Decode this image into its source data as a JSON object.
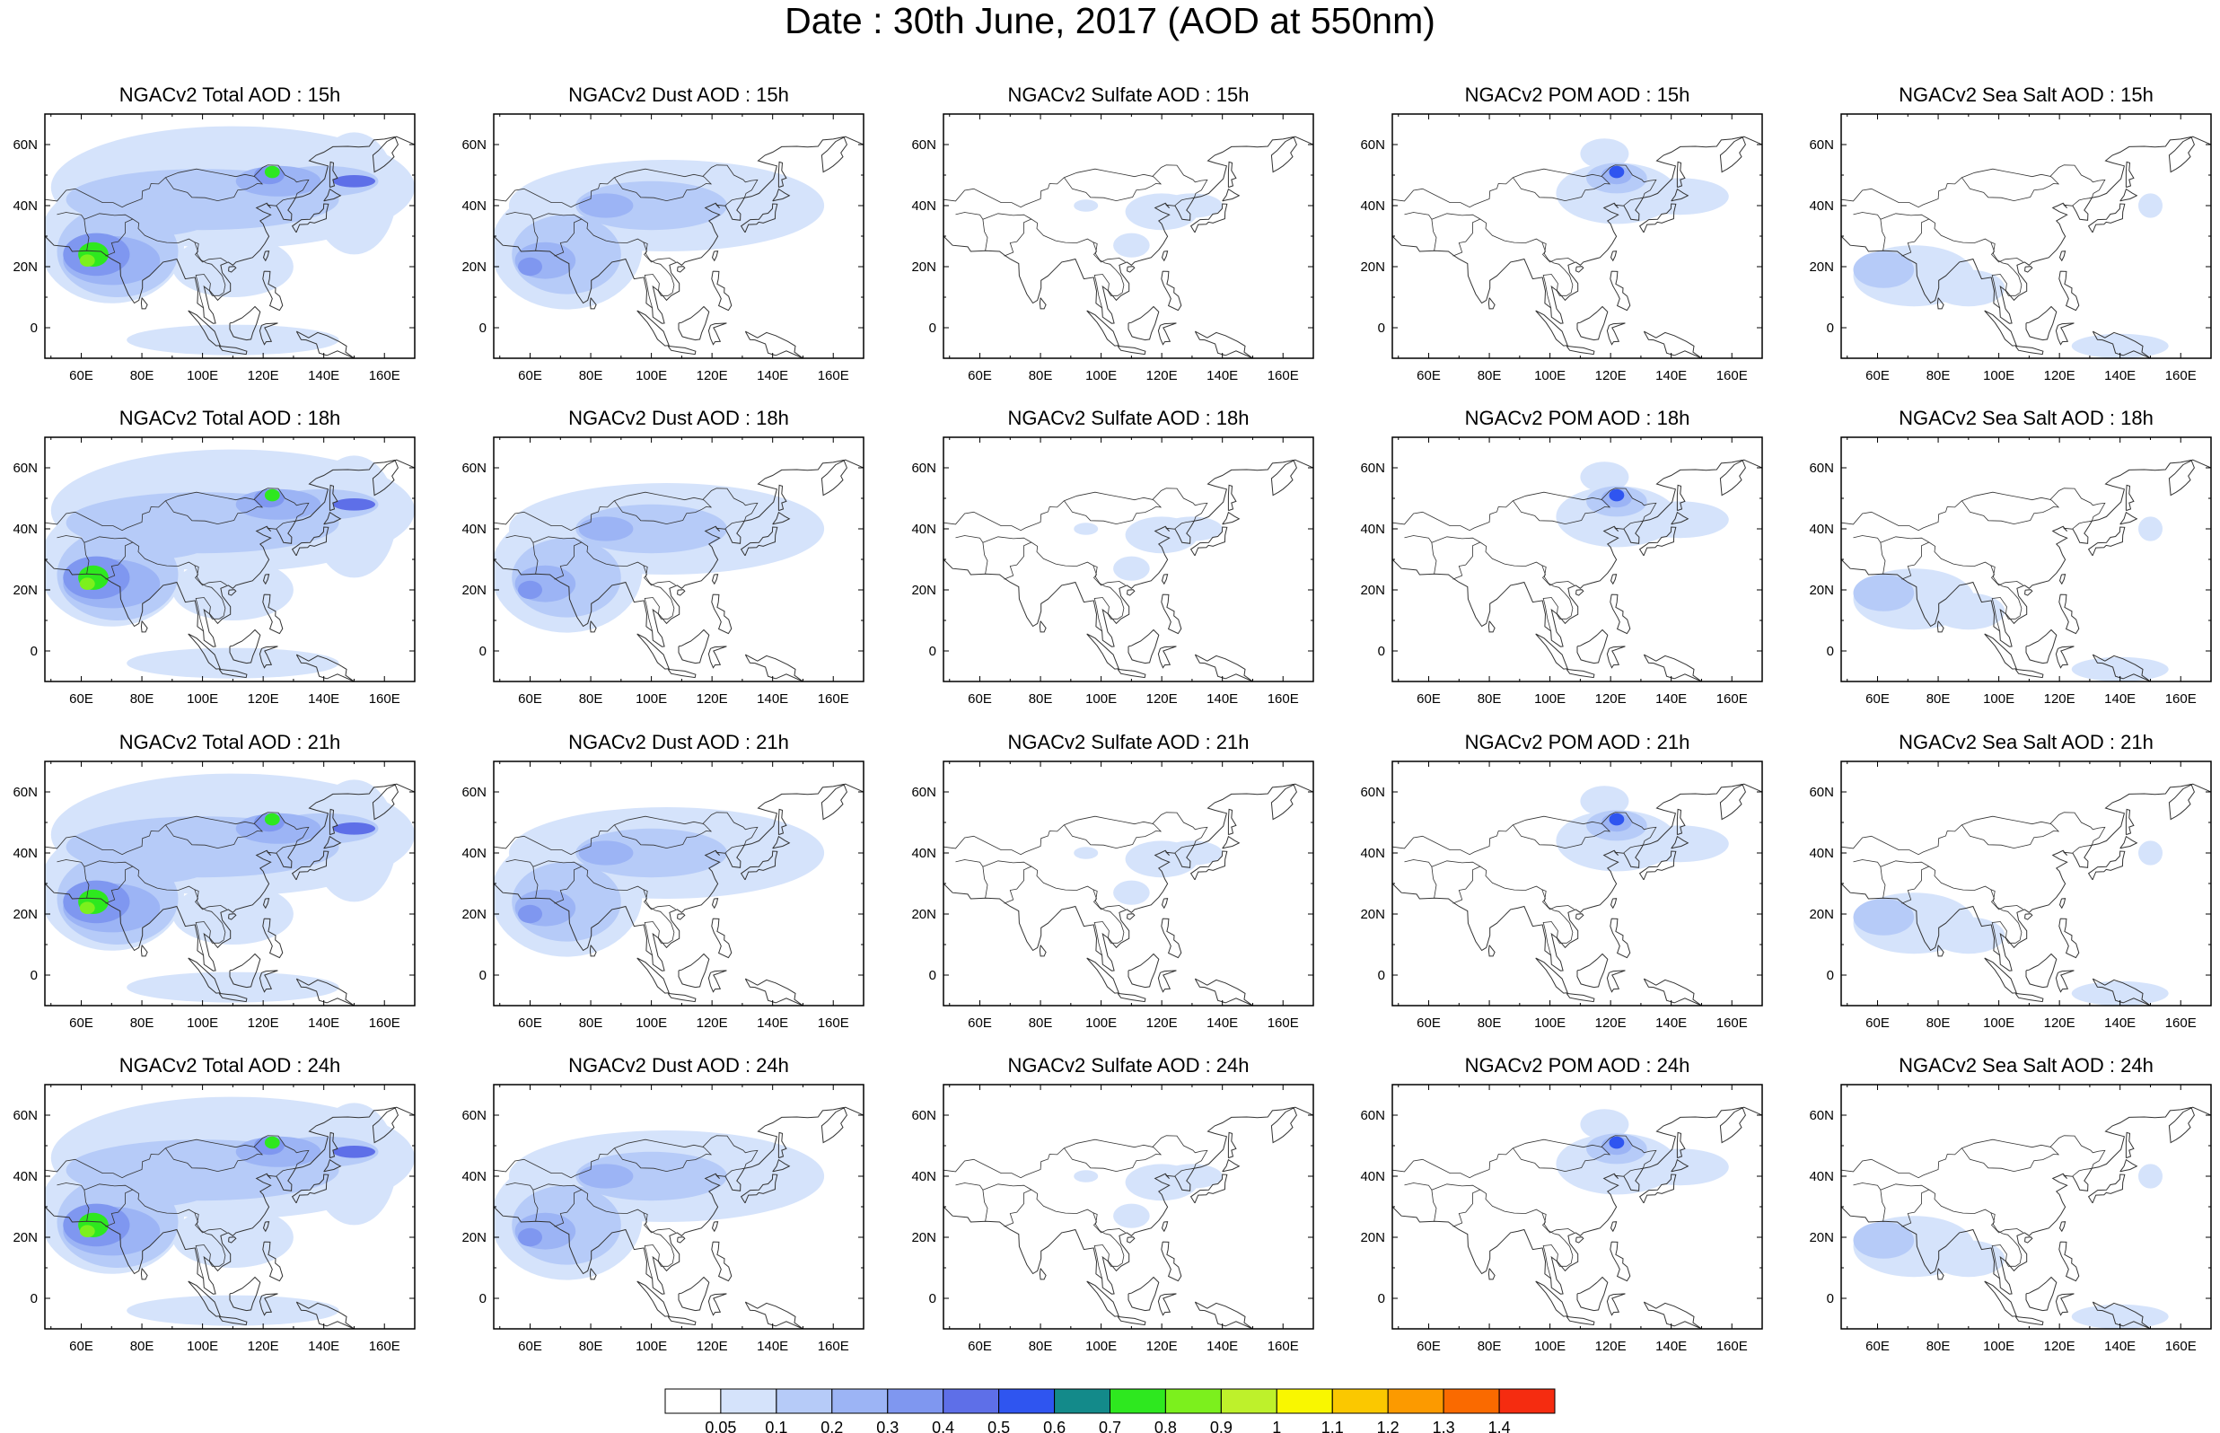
{
  "title": "Date : 30th June, 2017 (AOD at 550nm)",
  "panels": [
    [
      {
        "title": "NGACv2 Total AOD : 15h",
        "species": "total"
      },
      {
        "title": "NGACv2 Dust AOD : 15h",
        "species": "dust"
      },
      {
        "title": "NGACv2 Sulfate AOD : 15h",
        "species": "sulfate"
      },
      {
        "title": "NGACv2 POM AOD : 15h",
        "species": "pom"
      },
      {
        "title": "NGACv2 Sea Salt AOD : 15h",
        "species": "seasalt"
      }
    ],
    [
      {
        "title": "NGACv2 Total AOD : 18h",
        "species": "total"
      },
      {
        "title": "NGACv2 Dust AOD : 18h",
        "species": "dust"
      },
      {
        "title": "NGACv2 Sulfate AOD : 18h",
        "species": "sulfate"
      },
      {
        "title": "NGACv2 POM AOD : 18h",
        "species": "pom"
      },
      {
        "title": "NGACv2 Sea Salt AOD : 18h",
        "species": "seasalt"
      }
    ],
    [
      {
        "title": "NGACv2 Total AOD : 21h",
        "species": "total"
      },
      {
        "title": "NGACv2 Dust AOD : 21h",
        "species": "dust"
      },
      {
        "title": "NGACv2 Sulfate AOD : 21h",
        "species": "sulfate"
      },
      {
        "title": "NGACv2 POM AOD : 21h",
        "species": "pom"
      },
      {
        "title": "NGACv2 Sea Salt AOD : 21h",
        "species": "seasalt"
      }
    ],
    [
      {
        "title": "NGACv2 Total AOD : 24h",
        "species": "total"
      },
      {
        "title": "NGACv2 Dust AOD : 24h",
        "species": "dust"
      },
      {
        "title": "NGACv2 Sulfate AOD : 24h",
        "species": "sulfate"
      },
      {
        "title": "NGACv2 POM AOD : 24h",
        "species": "pom"
      },
      {
        "title": "NGACv2 Sea Salt  AOD : 24h",
        "species": "seasalt"
      }
    ]
  ],
  "lon_ticks": [
    "60E",
    "80E",
    "100E",
    "120E",
    "140E",
    "160E"
  ],
  "lat_ticks": [
    "60N",
    "40N",
    "20N",
    "0"
  ],
  "colorbar": {
    "labels": [
      "0.05",
      "0.1",
      "0.2",
      "0.3",
      "0.4",
      "0.5",
      "0.6",
      "0.7",
      "0.8",
      "0.9",
      "1",
      "1.1",
      "1.2",
      "1.3",
      "1.4"
    ],
    "colors": [
      "#ffffff",
      "#d5e3fb",
      "#b6cbf8",
      "#9cb4f5",
      "#7f97f0",
      "#5e6fe8",
      "#2f55f0",
      "#138a8a",
      "#2ee81f",
      "#7cf01d",
      "#bef12b",
      "#f9f700",
      "#fbc800",
      "#fc9a00",
      "#fa6a00",
      "#f52c10"
    ]
  }
}
